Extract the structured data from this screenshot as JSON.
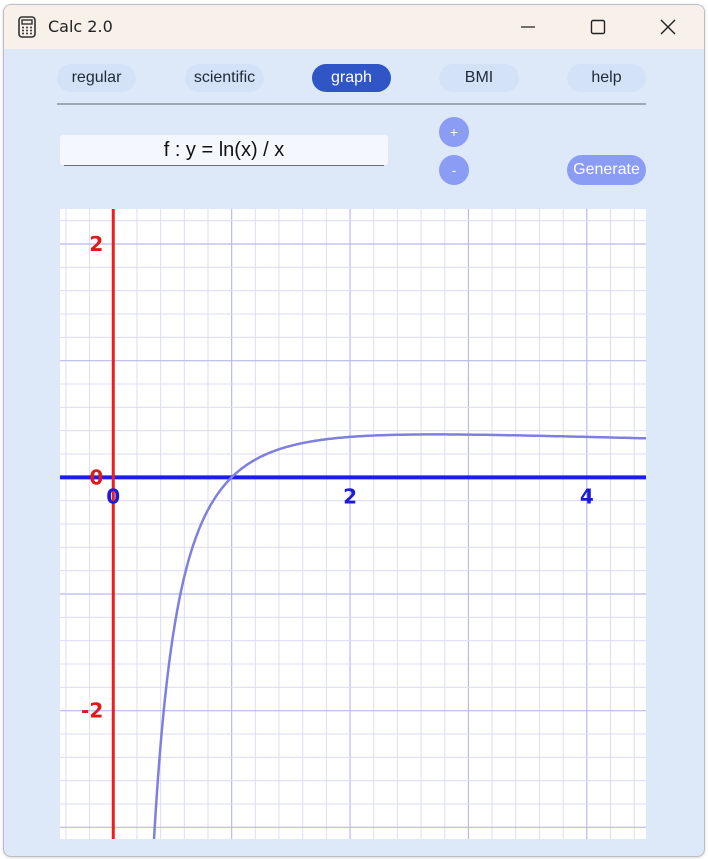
{
  "window": {
    "title": "Calc 2.0"
  },
  "tabs": [
    {
      "label": "regular",
      "active": false
    },
    {
      "label": "scientific",
      "active": false
    },
    {
      "label": "graph",
      "active": true
    },
    {
      "label": "BMI",
      "active": false
    },
    {
      "label": "help",
      "active": false
    }
  ],
  "formula": {
    "value": "f : y = ln(x) / x"
  },
  "buttons": {
    "zoom_in": "+",
    "zoom_out": "-",
    "generate": "Generate"
  },
  "chart_data": {
    "type": "line",
    "function": "ln(x) / x",
    "xlim": [
      -0.45,
      4.5
    ],
    "ylim": [
      -3.1,
      2.3
    ],
    "x_ticks": [
      {
        "value": 0,
        "label": "0"
      },
      {
        "value": 2,
        "label": "2"
      },
      {
        "value": 4,
        "label": "4"
      }
    ],
    "y_ticks": [
      {
        "value": 2,
        "label": "2"
      },
      {
        "value": 0,
        "label": "0"
      },
      {
        "value": -2,
        "label": "-2"
      }
    ],
    "grid": true,
    "colors": {
      "background": "#ffffff",
      "minor_grid": "#dcdcf6",
      "major_grid": "#b8b8ee",
      "x_axis": "#1c1cf0",
      "y_axis": "#f01c1c",
      "curve": "#7f7fdf",
      "x_tick_label": "#1c1cd6",
      "y_tick_label": "#e01818"
    }
  }
}
